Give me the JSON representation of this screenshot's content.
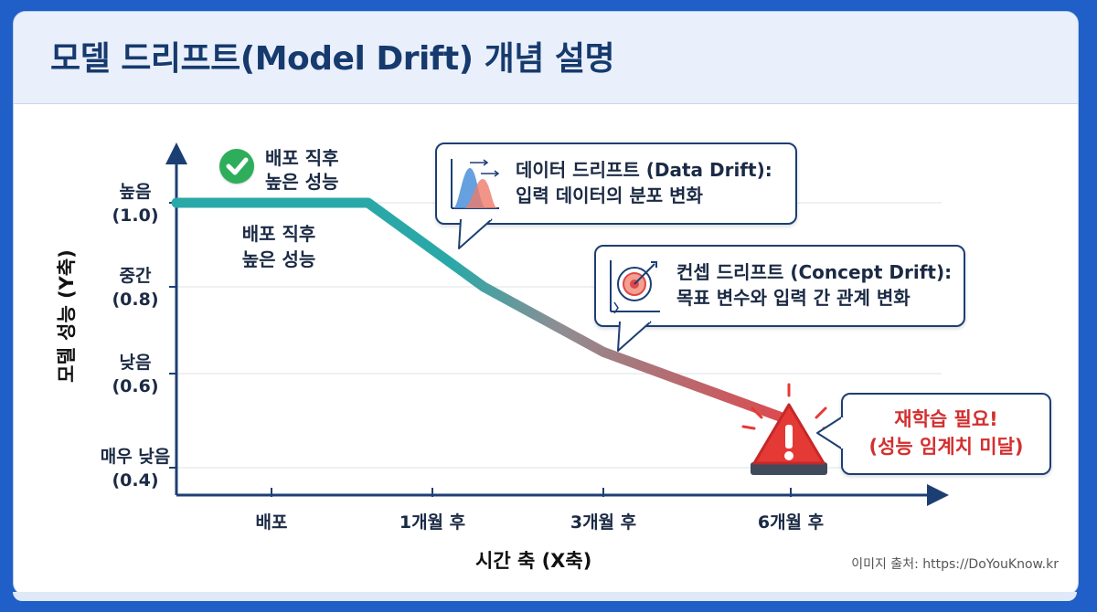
{
  "title": "모델 드리프트(Model Drift) 개념 설명",
  "credit": "이미지 출처: https://DoYouKnow.kr",
  "colors": {
    "line_start": "#2aa8a8",
    "line_mid": "#8e8e93",
    "line_end": "#e0474c",
    "axis": "#1c3f73",
    "alert": "#e53935",
    "check": "#2eae5a"
  },
  "chart_data": {
    "type": "line",
    "xlabel": "시간 축 (X축)",
    "ylabel": "모델 성능 (Y축)",
    "x_ticks": [
      "배포",
      "1개월 후",
      "3개월 후",
      "6개월 후"
    ],
    "y_ticks": [
      {
        "value": 1.0,
        "label_top": "높음",
        "label_bottom": "(1.0)"
      },
      {
        "value": 0.8,
        "label_top": "중간",
        "label_bottom": "(0.8)"
      },
      {
        "value": 0.6,
        "label_top": "낮음",
        "label_bottom": "(0.6)"
      },
      {
        "value": 0.4,
        "label_top": "매우 낮음",
        "label_bottom": "(0.4)"
      }
    ],
    "ylim": [
      0.4,
      1.0
    ],
    "grid": true,
    "series": [
      {
        "x": [
          "배포",
          "1개월 후",
          "3개월 후",
          "6개월 후"
        ],
        "points": [
          {
            "t": -0.6,
            "y": 1.0
          },
          {
            "t": 0.6,
            "y": 1.0
          },
          {
            "t": 1.3,
            "y": 0.8
          },
          {
            "t": 2.0,
            "y": 0.65
          },
          {
            "t": 3.0,
            "y": 0.5
          }
        ]
      }
    ],
    "annotations": {
      "deploy_badge": [
        "배포 직후",
        "높은 성능"
      ],
      "deploy_label": [
        "배포 직후",
        "높은 성능"
      ],
      "data_drift": [
        "데이터 드리프트 (Data Drift):",
        "입력 데이터의 분포 변화"
      ],
      "concept_drift": [
        "컨셉 드리프트 (Concept Drift):",
        "목표 변수와 입력 간 관계 변화"
      ],
      "alert": [
        "재학습 필요!",
        "(성능 임계치 미달)"
      ]
    }
  }
}
